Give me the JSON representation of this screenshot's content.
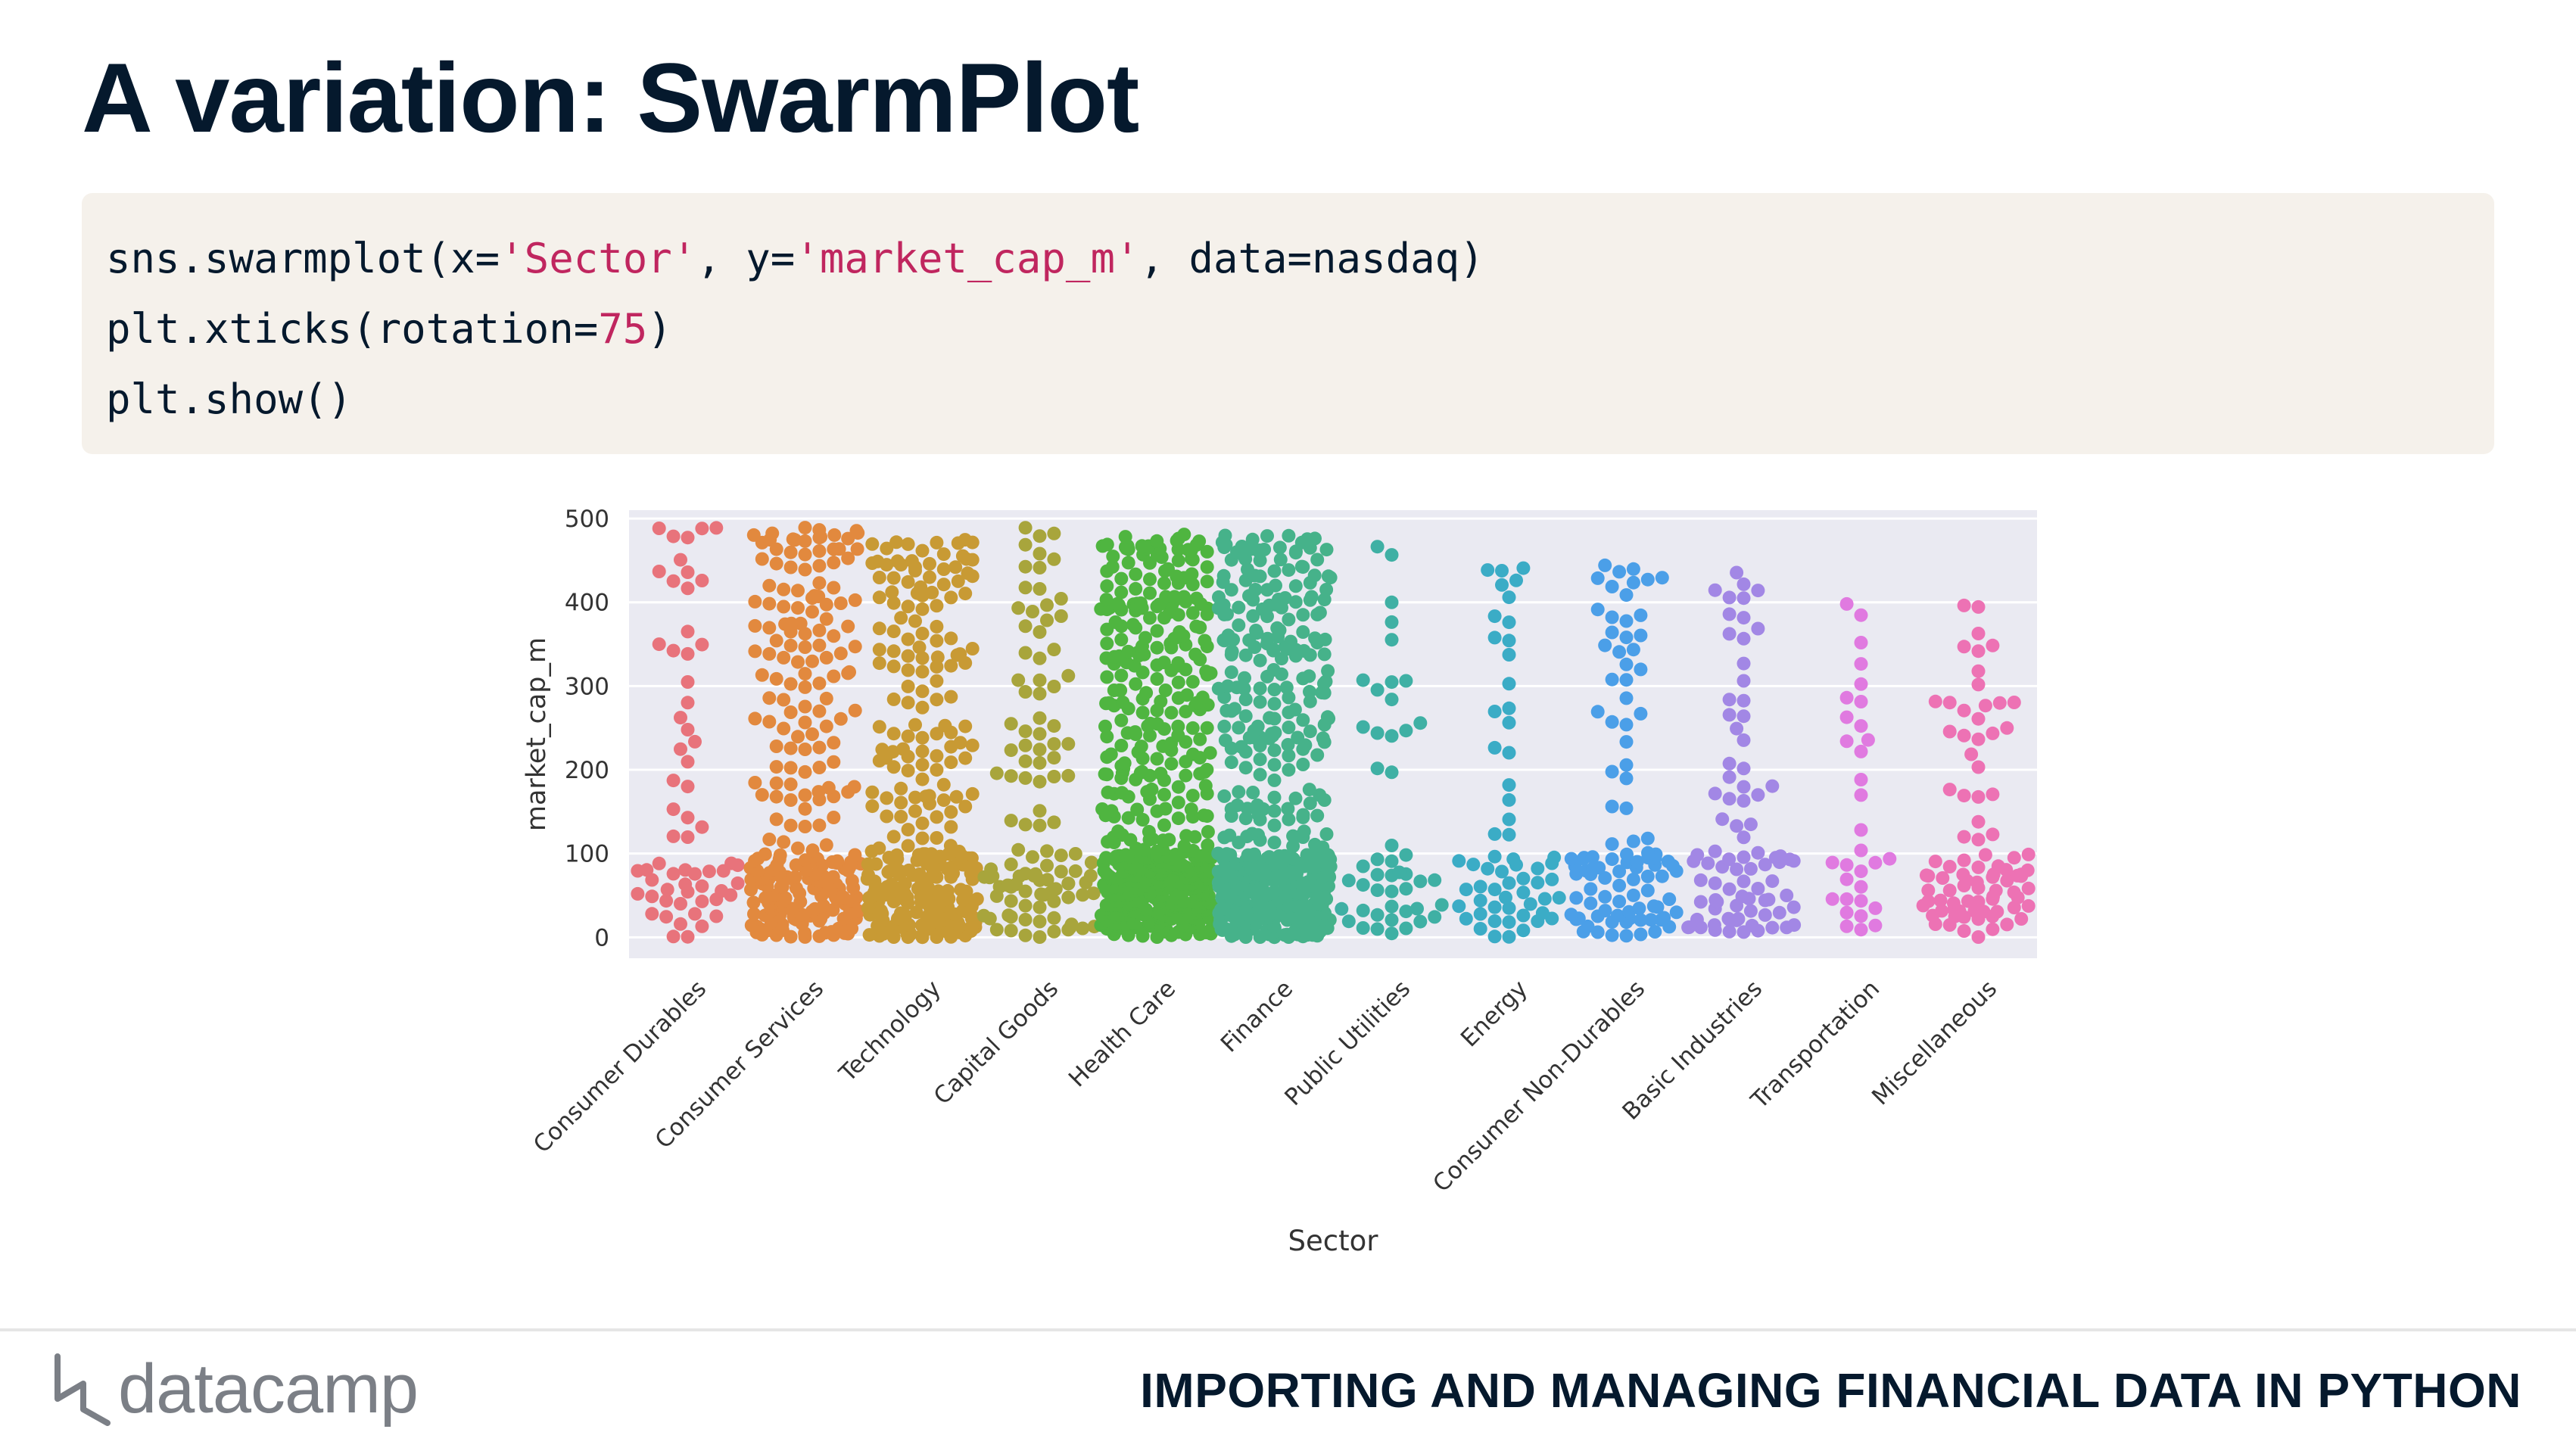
{
  "slide": {
    "title": "A variation: SwarmPlot",
    "course_title": "IMPORTING AND MANAGING FINANCIAL DATA IN PYTHON",
    "logo_text": "datacamp",
    "logo_icon": "datacamp-logo-icon"
  },
  "code": {
    "lines": [
      [
        {
          "t": "sns.swarmplot(x=",
          "c": "plain"
        },
        {
          "t": "'Sector'",
          "c": "str"
        },
        {
          "t": ", y=",
          "c": "plain"
        },
        {
          "t": "'market_cap_m'",
          "c": "str"
        },
        {
          "t": ", data=nasdaq)",
          "c": "plain"
        }
      ],
      [
        {
          "t": "plt.xticks(rotation=",
          "c": "plain"
        },
        {
          "t": "75",
          "c": "num"
        },
        {
          "t": ")",
          "c": "plain"
        }
      ],
      [
        {
          "t": "plt.show()",
          "c": "plain"
        }
      ]
    ]
  },
  "chart_data": {
    "type": "scatter",
    "subtype": "swarm",
    "xlabel": "Sector",
    "ylabel": "market_cap_m",
    "ylim": [
      -25,
      510
    ],
    "yticks": [
      0,
      100,
      200,
      300,
      400,
      500
    ],
    "grid": true,
    "tick_rotation": 75,
    "colors": {
      "background": "#eaeaf2",
      "grid": "#ffffff",
      "tick_text": "#333333"
    },
    "categories": [
      {
        "name": "Consumer Durables",
        "color": "#e8737b",
        "n": 62,
        "max": 490
      },
      {
        "name": "Consumer Services",
        "color": "#e2893e",
        "n": 260,
        "max": 490
      },
      {
        "name": "Technology",
        "color": "#c89a34",
        "n": 300,
        "max": 485
      },
      {
        "name": "Capital Goods",
        "color": "#a8a53c",
        "n": 110,
        "max": 490
      },
      {
        "name": "Health Care",
        "color": "#4fb540",
        "n": 520,
        "max": 485
      },
      {
        "name": "Finance",
        "color": "#46b28a",
        "n": 520,
        "max": 480
      },
      {
        "name": "Public Utilities",
        "color": "#3fb0a4",
        "n": 48,
        "max": 470
      },
      {
        "name": "Energy",
        "color": "#3bacc6",
        "n": 60,
        "max": 450
      },
      {
        "name": "Consumer Non-Durables",
        "color": "#4b9fe8",
        "n": 100,
        "max": 450
      },
      {
        "name": "Basic Industries",
        "color": "#a287e5",
        "n": 85,
        "max": 440
      },
      {
        "name": "Transportation",
        "color": "#e07ae0",
        "n": 32,
        "max": 415
      },
      {
        "name": "Miscellaneous",
        "color": "#ed72b4",
        "n": 88,
        "max": 400
      }
    ]
  }
}
